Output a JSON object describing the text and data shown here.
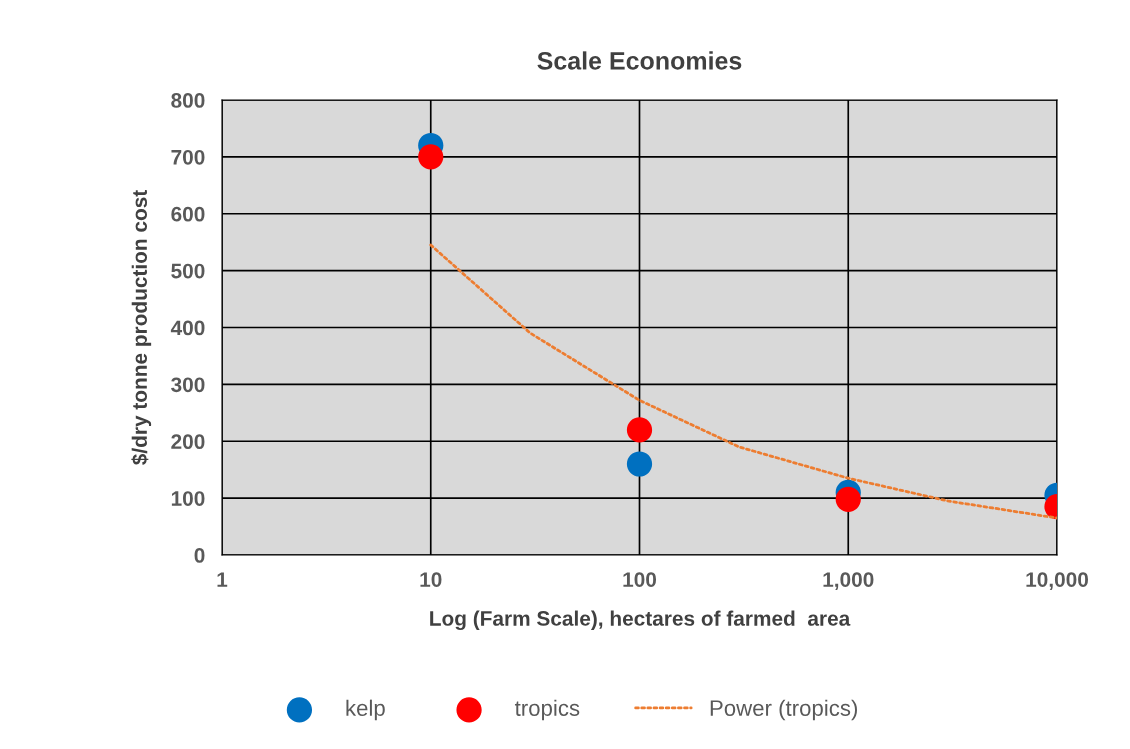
{
  "chart_data": {
    "type": "scatter",
    "title": "Scale Economies",
    "xlabel": "Log (Farm Scale), hectares of farmed  area",
    "ylabel": "$/dry tonne production cost",
    "log": "x",
    "xlim": [
      1,
      10000
    ],
    "xticks": [
      1,
      10,
      100,
      {
        "value": 1000,
        "label": "1,000"
      },
      {
        "value": 10000,
        "label": "10,000"
      }
    ],
    "ylim": [
      0,
      800
    ],
    "yticks": [
      0,
      100,
      200,
      300,
      400,
      500,
      600,
      700,
      800
    ],
    "grid": true,
    "legend": "bottom",
    "marker": "circle",
    "x": [
      10,
      100,
      1000,
      10000
    ],
    "series": [
      {
        "name": "kelp",
        "color": "#0070c0",
        "values": [
          720,
          160,
          110,
          105
        ]
      },
      {
        "name": "tropics",
        "color": "#ff0000",
        "values": [
          700,
          220,
          98,
          85
        ]
      },
      {
        "name": "Power (tropics)",
        "type": "line",
        "color": "#ed7d31",
        "line_style": "dotted",
        "marker": "none",
        "x": [
          10,
          30,
          100,
          300,
          1000,
          3000,
          10000
        ],
        "values": [
          545,
          390,
          272,
          190,
          135,
          95,
          65
        ]
      }
    ]
  }
}
